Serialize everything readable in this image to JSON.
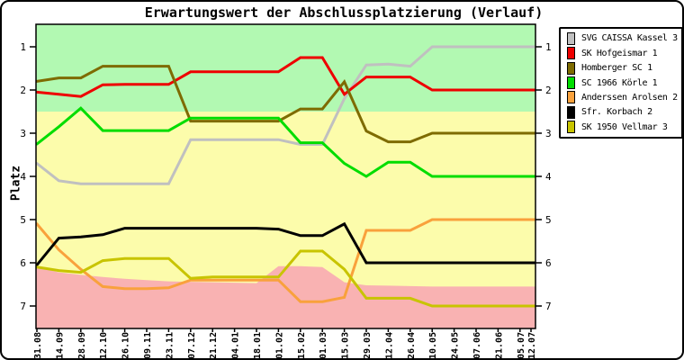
{
  "window_title": "Erwartungswert der Abschlussplatzierung (Verlauf)",
  "chart_data": {
    "type": "line",
    "title": "Erwartungswert der Abschlussplatzierung (Verlauf)",
    "xlabel": "",
    "ylabel": "Platz",
    "y_ticks": [
      1,
      2,
      3,
      4,
      5,
      6,
      7
    ],
    "y_axis_inverted": true,
    "ylim": [
      0.5,
      7.5
    ],
    "grid": false,
    "legend_position": "outside-top-right",
    "x_tick_labels": [
      "31.08",
      "14.09",
      "28.09",
      "12.10",
      "26.10",
      "09.11",
      "23.11",
      "07.12",
      "21.12",
      "04.01",
      "18.01",
      "01.02",
      "15.02",
      "01.03",
      "15.03",
      "29.03",
      "12.04",
      "26.04",
      "10.05",
      "24.05",
      "07.06",
      "21.06",
      "05.07",
      "12.07"
    ],
    "x_day_offsets": [
      0,
      14,
      28,
      42,
      56,
      70,
      84,
      98,
      112,
      126,
      140,
      154,
      168,
      182,
      196,
      210,
      224,
      238,
      252,
      266,
      280,
      294,
      308,
      315
    ],
    "zones": {
      "promotion_zone_color": "#b2f9b2",
      "midfield_zone_color": "#fcfcab",
      "relegation_zone_color": "#f9b2b2",
      "promotion_boundary_platz": 2.5,
      "relegation_boundary_platz": [
        6.1,
        6.22,
        6.28,
        6.33,
        6.37,
        6.4,
        6.43,
        6.44,
        6.45,
        6.46,
        6.47,
        6.08,
        6.08,
        6.1,
        6.45,
        6.52,
        6.53,
        6.54,
        6.55,
        6.55,
        6.55,
        6.55,
        6.55,
        6.55
      ]
    },
    "series": [
      {
        "name": "SVG CAISSA Kassel 3",
        "color": "#c0c0c0",
        "values": [
          3.7,
          4.1,
          4.17,
          4.17,
          4.17,
          4.17,
          4.17,
          3.15,
          3.15,
          3.15,
          3.15,
          3.15,
          3.26,
          3.26,
          2.2,
          1.42,
          1.4,
          1.45,
          1.0,
          1.0,
          1.0,
          1.0,
          1.0,
          1.0
        ]
      },
      {
        "name": "SK Hofgeismar 1",
        "color": "#ee0000",
        "values": [
          2.05,
          2.1,
          2.15,
          1.88,
          1.87,
          1.87,
          1.87,
          1.58,
          1.58,
          1.58,
          1.58,
          1.58,
          1.25,
          1.25,
          2.1,
          1.7,
          1.7,
          1.7,
          2.0,
          2.0,
          2.0,
          2.0,
          2.0,
          2.0
        ]
      },
      {
        "name": "Homberger SC 1",
        "color": "#7e6b00",
        "values": [
          1.8,
          1.72,
          1.72,
          1.45,
          1.45,
          1.45,
          1.45,
          2.72,
          2.72,
          2.72,
          2.72,
          2.72,
          2.44,
          2.44,
          1.81,
          2.95,
          3.2,
          3.2,
          3.0,
          3.0,
          3.0,
          3.0,
          3.0,
          3.0
        ]
      },
      {
        "name": "SC 1966 Körle 1",
        "color": "#00dd00",
        "values": [
          3.25,
          2.85,
          2.42,
          2.94,
          2.94,
          2.94,
          2.94,
          2.65,
          2.65,
          2.65,
          2.65,
          2.65,
          3.22,
          3.22,
          3.7,
          4.0,
          3.67,
          3.67,
          4.0,
          4.0,
          4.0,
          4.0,
          4.0,
          4.0
        ]
      },
      {
        "name": "Anderssen Arolsen 2",
        "color": "#f9a13c",
        "values": [
          5.1,
          5.7,
          6.15,
          6.55,
          6.6,
          6.6,
          6.58,
          6.4,
          6.4,
          6.4,
          6.4,
          6.4,
          6.9,
          6.9,
          6.8,
          5.25,
          5.25,
          5.25,
          5.0,
          5.0,
          5.0,
          5.0,
          5.0,
          5.0
        ]
      },
      {
        "name": "Sfr. Korbach 2",
        "color": "#000000",
        "values": [
          6.05,
          5.43,
          5.4,
          5.35,
          5.2,
          5.2,
          5.2,
          5.2,
          5.2,
          5.2,
          5.2,
          5.22,
          5.37,
          5.37,
          5.1,
          6.0,
          6.0,
          6.0,
          6.0,
          6.0,
          6.0,
          6.0,
          6.0,
          6.0
        ]
      },
      {
        "name": "SK 1950 Vellmar 3",
        "color": "#c8c400",
        "values": [
          6.1,
          6.18,
          6.22,
          5.95,
          5.9,
          5.9,
          5.9,
          6.36,
          6.33,
          6.33,
          6.33,
          6.33,
          5.73,
          5.73,
          6.15,
          6.82,
          6.82,
          6.82,
          7.0,
          7.0,
          7.0,
          7.0,
          7.0,
          7.0
        ]
      }
    ]
  }
}
